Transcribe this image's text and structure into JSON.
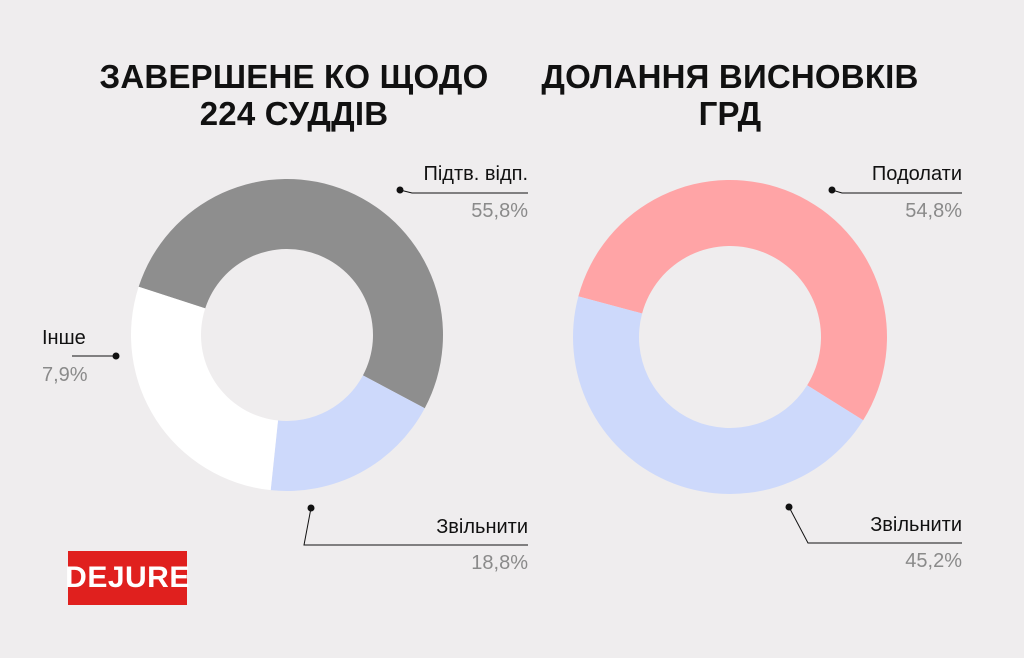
{
  "chart_data": [
    {
      "type": "pie",
      "title": "ЗАВЕРШЕНЕ КО ЩОДО 224 СУДДІВ",
      "slices": [
        {
          "label": "Підтв. відп.",
          "value_text": "55,8%",
          "value": 55.8,
          "color": "#8e8e8e"
        },
        {
          "label": "Звільнити",
          "value_text": "18,8%",
          "value": 18.8,
          "color": "#cdd9fb"
        },
        {
          "label": "Інше",
          "value_text": "7,9%",
          "value": 7.9,
          "color": "#ffffff"
        }
      ]
    },
    {
      "type": "pie",
      "title": "ДОЛАННЯ ВИСНОВКІВ ГРД",
      "slices": [
        {
          "label": "Подолати",
          "value_text": "54,8%",
          "value": 54.8,
          "color": "#ffa4a6"
        },
        {
          "label": "Звільнити",
          "value_text": "45,2%",
          "value": 45.2,
          "color": "#cdd9fb"
        }
      ]
    }
  ],
  "logo": {
    "text": "DEJURE"
  }
}
